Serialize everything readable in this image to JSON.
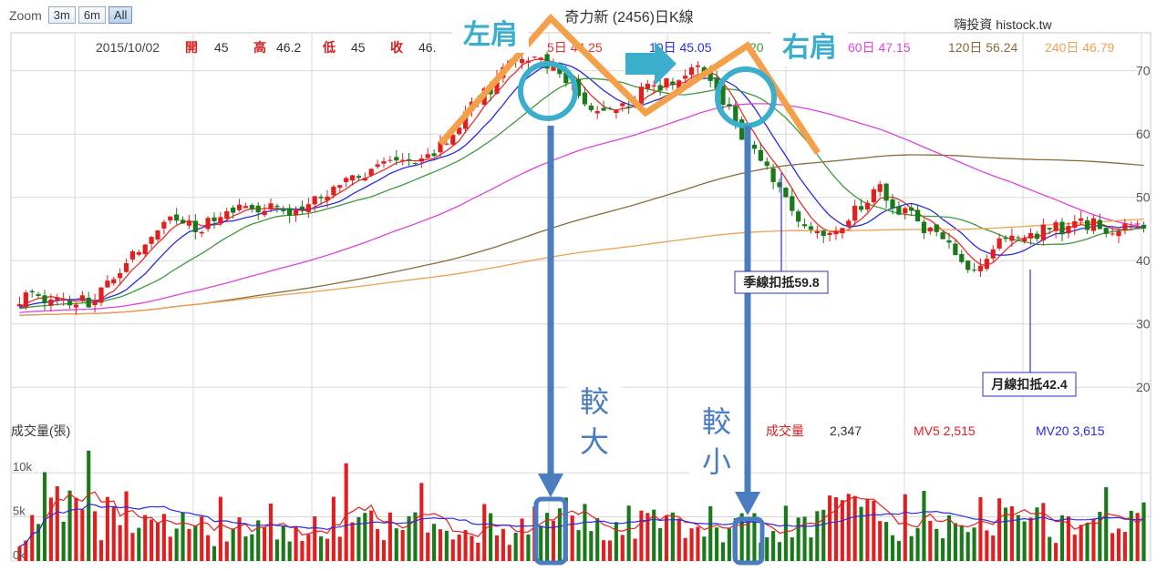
{
  "zoom": {
    "label": "Zoom",
    "buttons": [
      "3m",
      "6m",
      "All"
    ],
    "active": "All"
  },
  "chart_title": "奇力新 (2456)日K線",
  "watermark": "嗨投資 histock.tw",
  "ohlc": {
    "date": "2015/10/02",
    "open_label": "開",
    "open": "45",
    "high_label": "高",
    "high": "46.2",
    "low_label": "低",
    "low": "45",
    "close_label": "收",
    "close": "46."
  },
  "ma_legend": [
    {
      "text": "5日 44.25",
      "color": "#e03030"
    },
    {
      "text": "10日 45.05",
      "color": "#2a2ae0"
    },
    {
      "text": "20",
      "color": "#3c9a3c"
    },
    {
      "text": "60日 47.15",
      "color": "#e040e0"
    },
    {
      "text": "120日 56.24",
      "color": "#8b6a3a"
    },
    {
      "text": "240日 46.79",
      "color": "#f0a050"
    }
  ],
  "volume_legend": {
    "title": "成交量(張)",
    "vol_label": "成交量",
    "vol_value": "2,347",
    "mv5": "MV5 2,515",
    "mv20": "MV20 3,615"
  },
  "annotations": {
    "left_shoulder": "左肩",
    "right_shoulder": "右肩",
    "left_volume": "較大",
    "right_volume": "較小",
    "quarter_deduct": "季線扣抵59.8",
    "month_deduct": "月線扣抵42.4"
  },
  "colors": {
    "up": "#e02020",
    "down": "#1a7a1a",
    "orange": "#f4a04a",
    "teal": "#3aaecb",
    "arrow_blue": "#4a7cc0",
    "grid": "#d8d8d8"
  },
  "chart_data": {
    "type": "candlestick",
    "title": "奇力新 (2456)日K線",
    "n_bars": 180,
    "price_axis": {
      "ylim": [
        15,
        76
      ],
      "ticks": [
        20,
        30,
        40,
        50,
        60,
        70
      ]
    },
    "volume_axis": {
      "ylim": [
        0,
        13000
      ],
      "ticks": [
        "0k",
        "5k",
        "10k"
      ]
    },
    "price_anchors": [
      [
        0,
        34
      ],
      [
        14,
        33.5
      ],
      [
        16,
        34
      ],
      [
        22,
        40
      ],
      [
        30,
        46
      ],
      [
        36,
        45
      ],
      [
        42,
        48
      ],
      [
        48,
        49
      ],
      [
        54,
        47
      ],
      [
        62,
        51
      ],
      [
        70,
        53
      ],
      [
        76,
        55
      ],
      [
        82,
        56
      ],
      [
        86,
        58
      ],
      [
        90,
        62
      ],
      [
        96,
        67
      ],
      [
        100,
        71
      ],
      [
        106,
        72
      ],
      [
        112,
        68
      ],
      [
        118,
        63
      ],
      [
        124,
        65
      ],
      [
        128,
        67
      ],
      [
        134,
        69
      ],
      [
        138,
        71
      ],
      [
        142,
        68
      ],
      [
        146,
        62
      ],
      [
        150,
        58
      ],
      [
        155,
        52
      ],
      [
        160,
        46
      ],
      [
        165,
        44
      ],
      [
        170,
        47
      ],
      [
        176,
        51
      ],
      [
        182,
        47
      ],
      [
        188,
        44
      ],
      [
        194,
        38
      ],
      [
        200,
        43
      ],
      [
        206,
        44
      ],
      [
        212,
        45
      ],
      [
        218,
        46
      ],
      [
        224,
        45
      ],
      [
        230,
        46
      ]
    ],
    "volume_level_k": [
      1.5,
      8.5,
      7.0,
      5.0,
      5.5,
      4.2,
      3.8,
      4.6,
      3.4,
      3.2,
      4.4,
      3.6,
      3.6,
      6.0,
      5.2,
      3.8,
      3.6,
      4.0,
      4.6,
      3.9,
      3.4,
      4.6,
      5.2,
      4.9,
      4.5,
      4.8,
      4.7,
      4.0,
      4.2,
      4.4,
      4.2,
      4.0,
      4.8,
      5.2,
      4.6,
      4.8,
      5.6,
      4.6,
      4.9,
      5.4,
      5.2,
      4.3,
      3.9,
      4.0,
      4.3,
      4.4
    ],
    "moving_averages": [
      "MA5",
      "MA10",
      "MA20",
      "MA60",
      "MA120",
      "MA240"
    ]
  }
}
